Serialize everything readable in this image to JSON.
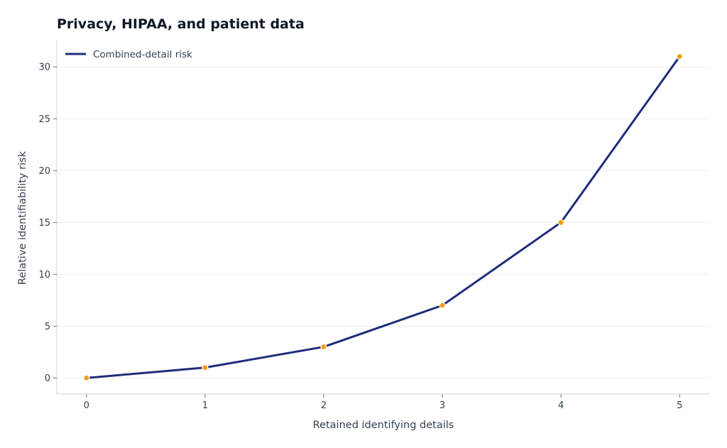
{
  "chart_data": {
    "type": "line",
    "title": "Privacy, HIPAA, and patient data",
    "xlabel": "Retained identifying details",
    "ylabel": "Relative identifiability risk",
    "x": [
      0,
      1,
      2,
      3,
      4,
      5
    ],
    "series": [
      {
        "name": "Combined-detail risk",
        "values": [
          0,
          1,
          3,
          7,
          15,
          31
        ]
      }
    ],
    "xticks": [
      "0",
      "1",
      "2",
      "3",
      "4",
      "5"
    ],
    "yticks": [
      "0",
      "5",
      "10",
      "15",
      "20",
      "25",
      "30"
    ],
    "xlim": [
      -0.25,
      5.25
    ],
    "ylim": [
      -1.55,
      32.55
    ],
    "grid": "horizontal",
    "legend": "top-left",
    "colors": {
      "line": "#1f2d7a",
      "marker": "#f59e0b",
      "grid": "#eceef1",
      "axis": "#d1d5db"
    }
  }
}
